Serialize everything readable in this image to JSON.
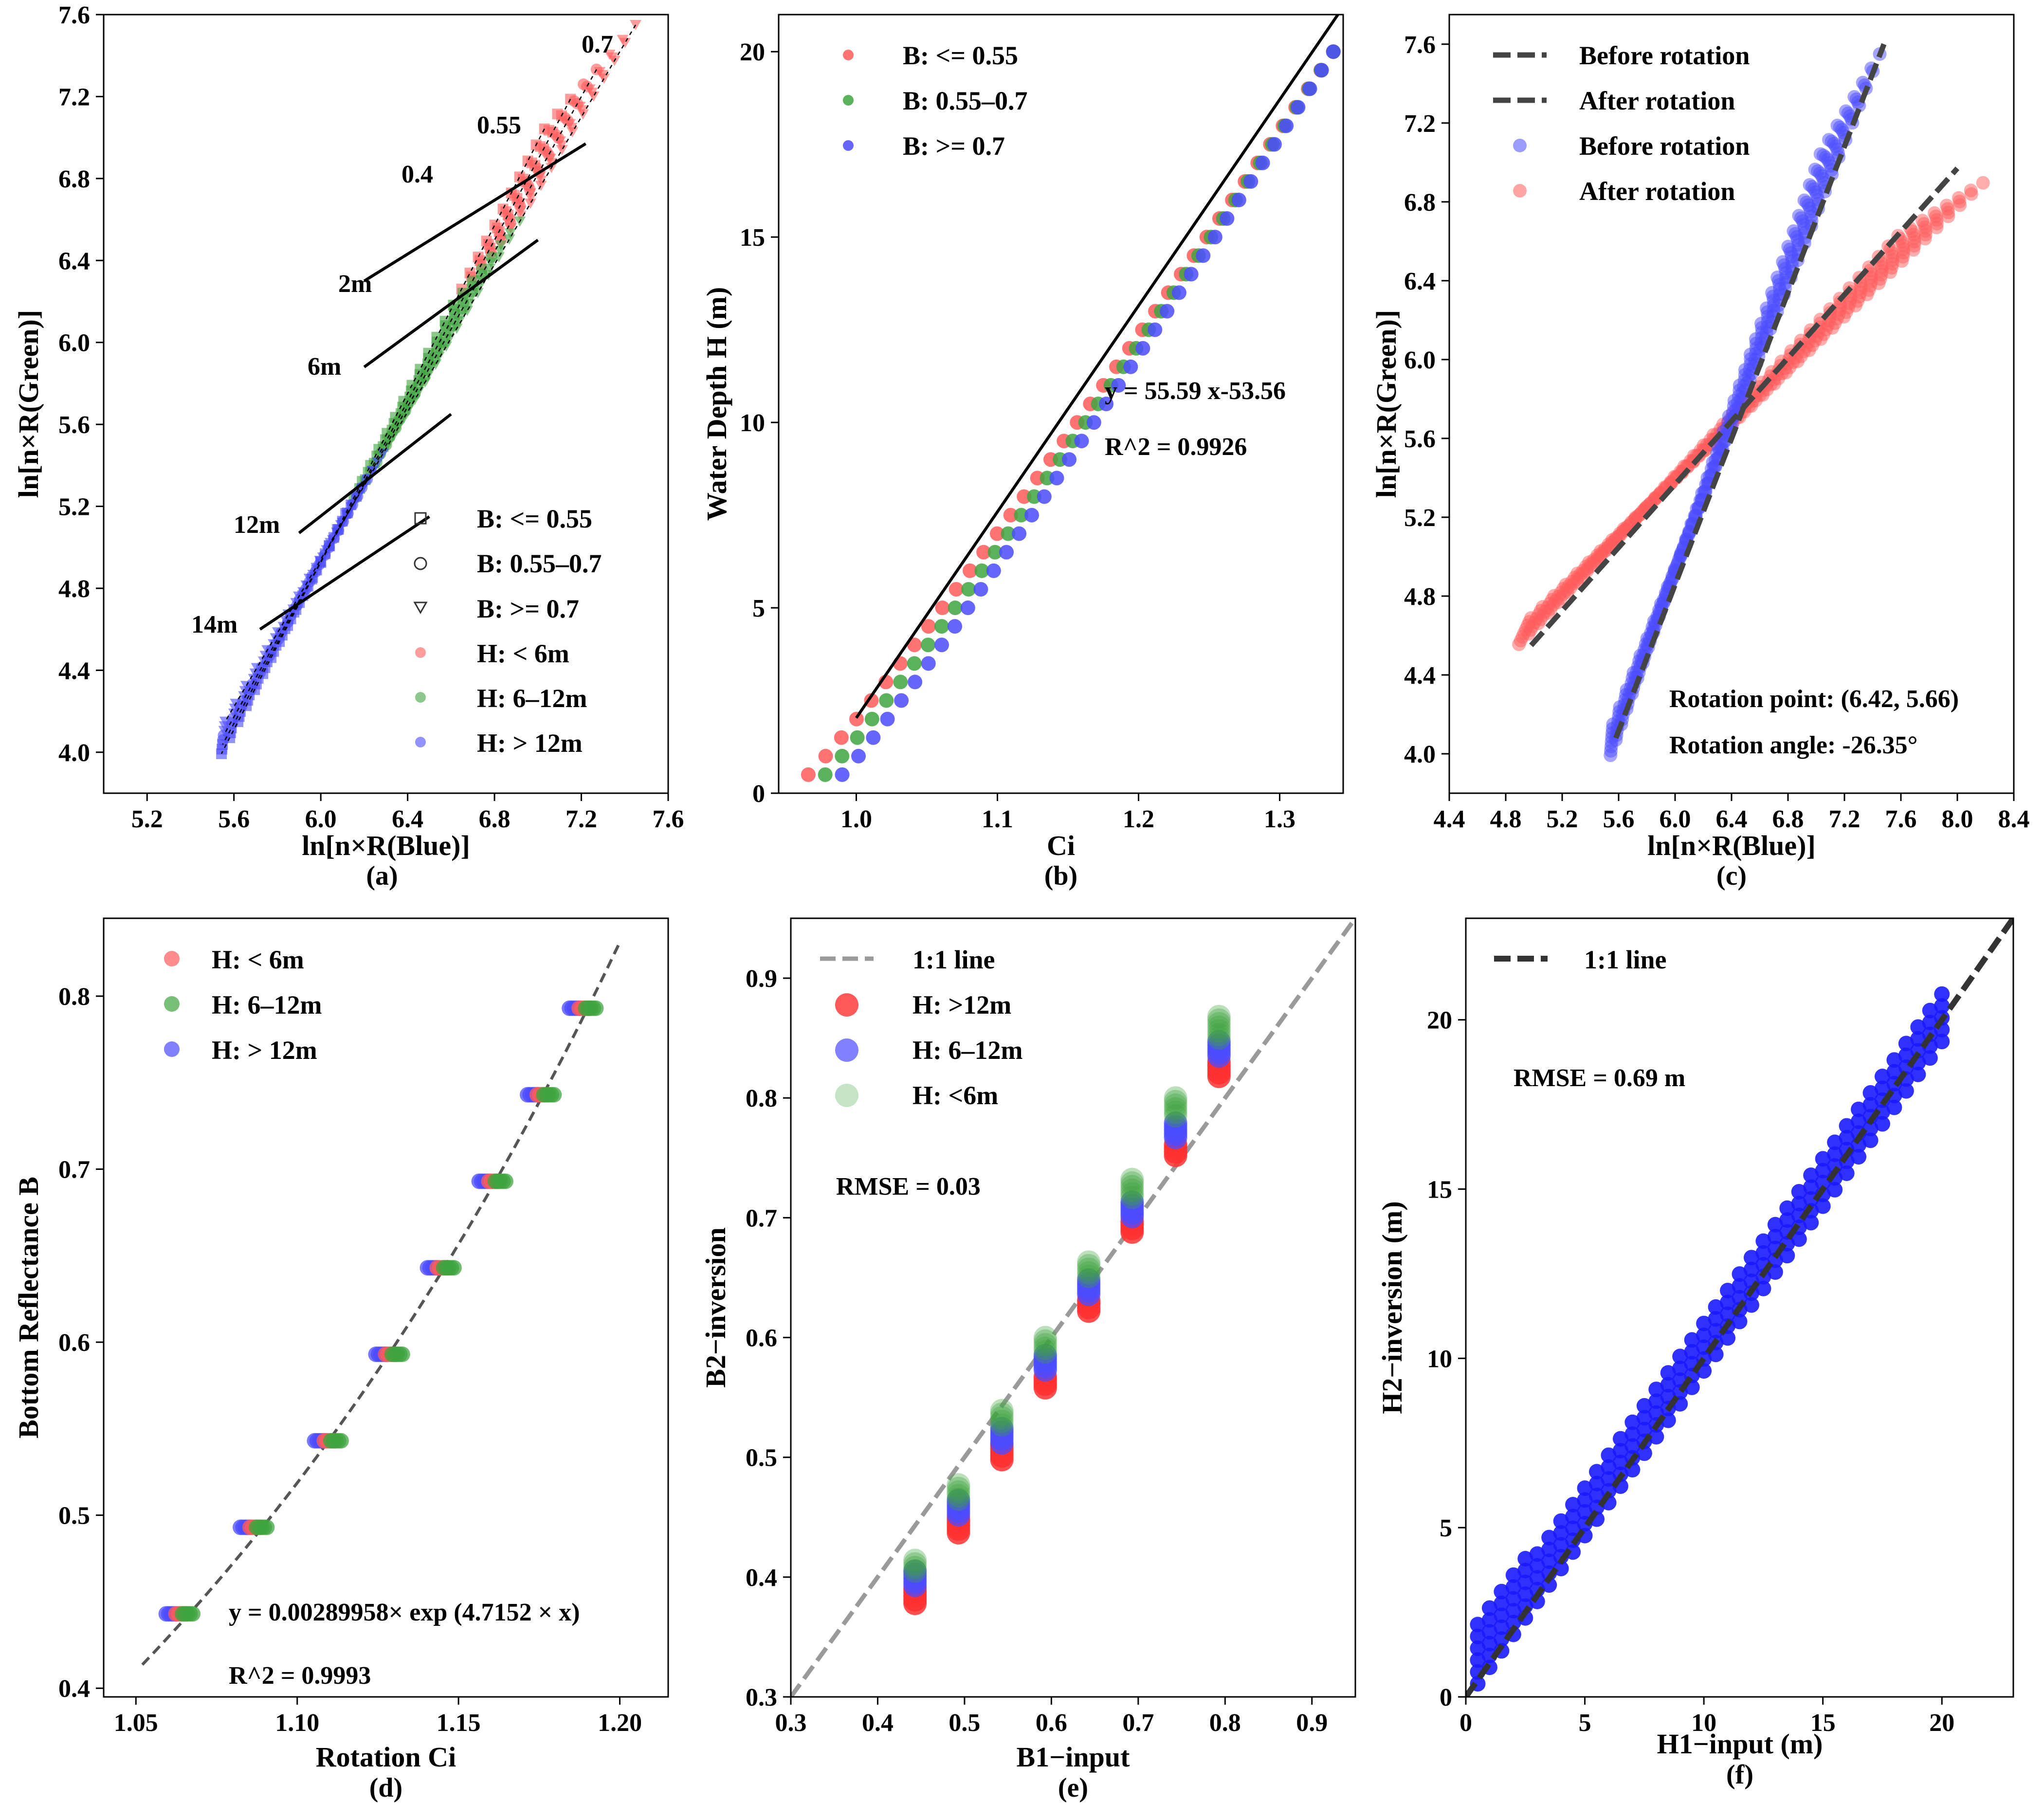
{
  "colors": {
    "red": "#ff5b5b",
    "green": "#3fa43f",
    "blue": "#4b4bff",
    "dark_dash": "#444444",
    "grey_dash": "#9a9a9a"
  },
  "chart_data": [
    {
      "id": "a",
      "type": "scatter",
      "panel_label": "(a)",
      "xlabel": "ln[n×R(Blue)]",
      "ylabel": "ln[n×R(Green)]",
      "xlim": [
        5.0,
        7.6
      ],
      "ylim": [
        3.8,
        7.6
      ],
      "xticks": [
        "5.2",
        "5.6",
        "6.0",
        "6.4",
        "6.8",
        "7.2",
        "7.6"
      ],
      "yticks": [
        "4.0",
        "4.4",
        "4.8",
        "5.2",
        "5.6",
        "6.0",
        "6.4",
        "6.8",
        "7.2",
        "7.6"
      ],
      "bottom_reflectance_levels": [
        0.45,
        0.5,
        0.55,
        0.6,
        0.65,
        0.7,
        0.75,
        0.8
      ],
      "depth_range_m": [
        0.5,
        20
      ],
      "legend": [
        {
          "label": "B: <= 0.55",
          "marker": "square-open"
        },
        {
          "label": "B: 0.55–0.7",
          "marker": "circle-open"
        },
        {
          "label": "B: >= 0.7",
          "marker": "triangle-open"
        },
        {
          "label": "H: < 6m",
          "color": "red"
        },
        {
          "label": "H: 6–12m",
          "color": "green"
        },
        {
          "label": "H: > 12m",
          "color": "blue"
        }
      ],
      "annotations": [
        "0.7",
        "0.55",
        "0.4",
        "2m",
        "6m",
        "12m",
        "14m"
      ],
      "isodepth_lines": [
        {
          "label": "2m",
          "from": [
            6.2,
            6.3
          ],
          "to": [
            7.22,
            6.97
          ]
        },
        {
          "label": "6m",
          "from": [
            6.2,
            5.88
          ],
          "to": [
            7.0,
            6.5
          ]
        },
        {
          "label": "12m",
          "from": [
            5.9,
            5.07
          ],
          "to": [
            6.6,
            5.65
          ]
        },
        {
          "label": "14m",
          "from": [
            5.72,
            4.6
          ],
          "to": [
            6.5,
            5.15
          ]
        }
      ]
    },
    {
      "id": "b",
      "type": "scatter",
      "panel_label": "(b)",
      "xlabel": "Ci",
      "ylabel": "Water Depth H (m)",
      "xlim": [
        0.945,
        1.345
      ],
      "ylim": [
        0,
        21
      ],
      "xticks": [
        "1.0",
        "1.1",
        "1.2",
        "1.3"
      ],
      "yticks": [
        "0",
        "5",
        "10",
        "15",
        "20"
      ],
      "legend": [
        {
          "label": "B: <= 0.55",
          "color": "red"
        },
        {
          "label": "B: 0.55–0.7",
          "color": "green"
        },
        {
          "label": "B: >= 0.7",
          "color": "blue"
        }
      ],
      "fit": {
        "equation": "y = 55.59 x-53.56",
        "r2": "R^2 = 0.9926",
        "slope": 55.59,
        "intercept": -53.56,
        "x_range": [
          1.0,
          1.342
        ]
      },
      "depths": [
        0.5,
        20
      ],
      "ci_at_h05": {
        "red": 0.97,
        "green": 0.978,
        "blue": 0.986
      },
      "ci_at_h20": 1.338
    },
    {
      "id": "c",
      "type": "scatter",
      "panel_label": "(c)",
      "xlabel": "ln[n×R(Blue)]",
      "ylabel": "ln[n×R(Green)]",
      "xlim": [
        4.4,
        8.4
      ],
      "ylim": [
        3.8,
        7.75
      ],
      "xticks": [
        "4.4",
        "4.8",
        "5.2",
        "5.6",
        "6.0",
        "6.4",
        "6.8",
        "7.2",
        "7.6",
        "8.0",
        "8.4"
      ],
      "yticks": [
        "4.0",
        "4.4",
        "4.8",
        "5.2",
        "5.6",
        "6.0",
        "6.4",
        "6.8",
        "7.2",
        "7.6"
      ],
      "legend": [
        {
          "label": "Before rotation",
          "style": "dash"
        },
        {
          "label": "After rotation",
          "style": "dash"
        },
        {
          "label": "Before rotation",
          "color": "blue"
        },
        {
          "label": "After rotation",
          "color": "red"
        }
      ],
      "rotation_point_text": "Rotation point: (6.42, 5.66)",
      "rotation_angle_text": "Rotation angle: -26.35°",
      "rotation_point": [
        6.42,
        5.66
      ],
      "rotation_angle_deg": -26.35,
      "before_line": {
        "from": [
          5.58,
          4.08
        ],
        "to": [
          7.48,
          7.6
        ]
      },
      "after_line": {
        "from": [
          4.98,
          4.55
        ],
        "to": [
          8.0,
          6.97
        ]
      }
    },
    {
      "id": "d",
      "type": "scatter",
      "panel_label": "(d)",
      "xlabel": "Rotation Ci",
      "ylabel": "Bottom Reflectance B",
      "xlim": [
        1.04,
        1.215
      ],
      "ylim": [
        0.395,
        0.845
      ],
      "xticks": [
        "1.05",
        "1.10",
        "1.15",
        "1.20"
      ],
      "yticks": [
        "0.4",
        "0.5",
        "0.6",
        "0.7",
        "0.8"
      ],
      "legend": [
        {
          "label": "H: < 6m",
          "color": "red"
        },
        {
          "label": "H: 6–12m",
          "color": "green"
        },
        {
          "label": "H: > 12m",
          "color": "blue"
        }
      ],
      "fit": {
        "equation": "y = 0.00289958× exp (4.7152 × x)",
        "r2": "R^2 = 0.9993",
        "a": 0.00289958,
        "b": 4.7152,
        "x_range": [
          1.052,
          1.2
        ]
      },
      "points_b": [
        0.443,
        0.493,
        0.543,
        0.593,
        0.643,
        0.693,
        0.743,
        0.793
      ],
      "points_ci": [
        1.064,
        1.087,
        1.11,
        1.129,
        1.145,
        1.161,
        1.176,
        1.189
      ]
    },
    {
      "id": "e",
      "type": "scatter",
      "panel_label": "(e)",
      "xlabel": "B1−input",
      "ylabel": "B2−inversion",
      "xlim": [
        0.3,
        0.95
      ],
      "ylim": [
        0.3,
        0.95
      ],
      "xticks": [
        "0.3",
        "0.4",
        "0.5",
        "0.6",
        "0.7",
        "0.8",
        "0.9"
      ],
      "yticks": [
        "0.3",
        "0.4",
        "0.5",
        "0.6",
        "0.7",
        "0.8",
        "0.9"
      ],
      "legend": [
        {
          "label": "1:1 line",
          "style": "dash"
        },
        {
          "label": "H: >12m",
          "color": "red"
        },
        {
          "label": "H: 6–12m",
          "color": "blue"
        },
        {
          "label": "H: <6m",
          "color": "green"
        }
      ],
      "rmse_text": "RMSE = 0.03",
      "b1_input": [
        0.443,
        0.493,
        0.543,
        0.593,
        0.643,
        0.693,
        0.743,
        0.793
      ],
      "b2_ranges": {
        "red": [
          [
            0.378,
            0.39
          ],
          [
            0.437,
            0.45
          ],
          [
            0.498,
            0.51
          ],
          [
            0.558,
            0.568
          ],
          [
            0.622,
            0.632
          ],
          [
            0.688,
            0.698
          ],
          [
            0.752,
            0.762
          ],
          [
            0.818,
            0.83
          ]
        ],
        "blue": [
          [
            0.393,
            0.405
          ],
          [
            0.452,
            0.465
          ],
          [
            0.512,
            0.525
          ],
          [
            0.573,
            0.585
          ],
          [
            0.636,
            0.648
          ],
          [
            0.701,
            0.713
          ],
          [
            0.767,
            0.78
          ],
          [
            0.835,
            0.848
          ]
        ],
        "green": [
          [
            0.405,
            0.416
          ],
          [
            0.465,
            0.477
          ],
          [
            0.527,
            0.54
          ],
          [
            0.588,
            0.602
          ],
          [
            0.651,
            0.665
          ],
          [
            0.717,
            0.732
          ],
          [
            0.785,
            0.8
          ],
          [
            0.85,
            0.868
          ]
        ]
      }
    },
    {
      "id": "f",
      "type": "scatter",
      "panel_label": "(f)",
      "xlabel": "H1−input (m)",
      "ylabel": "H2−inversion (m)",
      "xlim": [
        0,
        23
      ],
      "ylim": [
        0,
        23
      ],
      "xticks": [
        "0",
        "5",
        "10",
        "15",
        "20"
      ],
      "yticks": [
        "0",
        "5",
        "10",
        "15",
        "20"
      ],
      "legend": [
        {
          "label": "1:1 line",
          "style": "dash"
        }
      ],
      "rmse_text": "RMSE = 0.69 m",
      "h1_range": [
        0.5,
        20
      ],
      "h2_spread": [
        -0.6,
        1.5
      ]
    }
  ]
}
